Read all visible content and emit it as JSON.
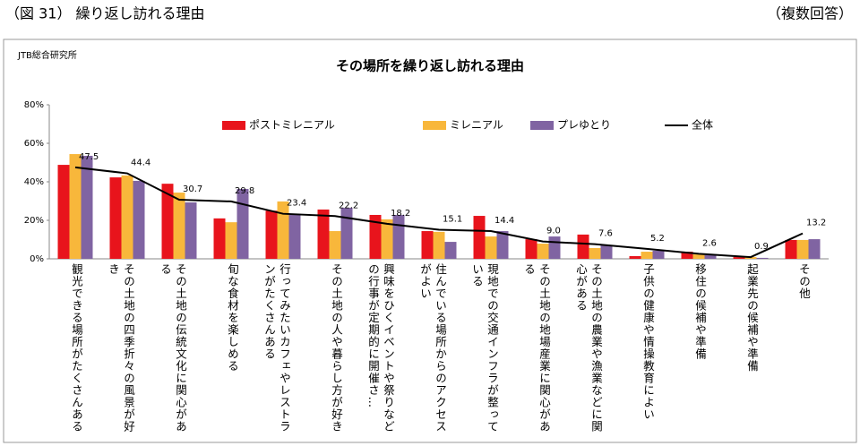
{
  "header": {
    "figure": "（図 31） 繰り返し訪れる理由",
    "note": "（複数回答）"
  },
  "chart_data": {
    "type": "bar",
    "source": "JTB総合研究所",
    "title": "その場所を繰り返し訪れる理由",
    "categories": [
      "観光できる場所がたくさんある",
      "その土地の四季折々の風景が好き",
      "その土地の伝統文化に関心がある",
      "旬な食材を楽しめる",
      "行ってみたいカフェやレストランがたくさんある",
      "その土地の人や暮らし方が好き",
      "興味をひくイベントや祭りなどの行事が定期的に開催さ…",
      "住んでいる場所からのアクセスがよい",
      "現地での交通インフラが整っている",
      "その土地の地場産業に関心がある",
      "その土地の農業や漁業などに関心がある",
      "子供の健康や情操教育によい",
      "移住の候補や準備",
      "起業先の候補や準備",
      "その他"
    ],
    "series": [
      {
        "name": "ポストミレニアル",
        "color": "#e8141c",
        "values": [
          48.8,
          42.3,
          39,
          21,
          25,
          25.6,
          22.8,
          14.4,
          22.3,
          10.2,
          12.6,
          1.4,
          3.7,
          0.9,
          9.8
        ]
      },
      {
        "name": "ミレニアル",
        "color": "#f8b73b",
        "values": [
          54.4,
          43.3,
          34.4,
          19,
          29.8,
          14.4,
          20.5,
          14,
          11.6,
          7.9,
          5.6,
          3.7,
          2.3,
          0.9,
          9.8
        ]
      },
      {
        "name": "プレゆとり",
        "color": "#8064a2",
        "values": [
          53.5,
          40.5,
          29.3,
          36.3,
          22.8,
          26.5,
          22.8,
          8.8,
          14.4,
          11.6,
          7,
          4.2,
          1.9,
          0.5,
          10.2
        ]
      },
      {
        "name": "全体",
        "color": "#000000",
        "type": "line",
        "values": [
          47.5,
          44.4,
          30.7,
          29.8,
          23.4,
          22.2,
          18.2,
          15.1,
          14.4,
          9,
          7.6,
          5.2,
          2.6,
          0.9,
          13.2
        ],
        "value_labels": [
          "47.5",
          "44.4",
          "30.7",
          "29.8",
          "23.4",
          "22.2",
          "18.2",
          "15.1",
          "14.4",
          "9.0",
          "7.6",
          "5.2",
          "2.6",
          "0.9",
          "13.2"
        ]
      }
    ],
    "ylim": [
      0,
      80
    ],
    "yticks": [
      {
        "value": 0,
        "label": "0%"
      },
      {
        "value": 20,
        "label": "20%"
      },
      {
        "value": 40,
        "label": "40%"
      },
      {
        "value": 60,
        "label": "60%"
      },
      {
        "value": 80,
        "label": "80%"
      }
    ],
    "grid": false,
    "legend": "top"
  }
}
